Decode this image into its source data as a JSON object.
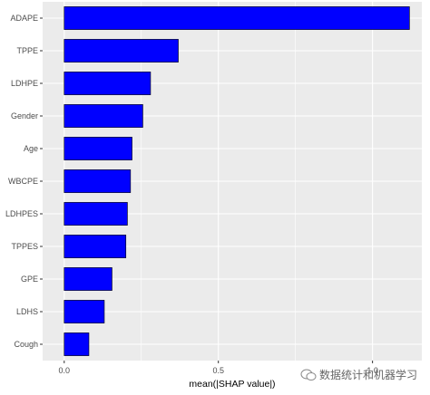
{
  "chart_data": {
    "type": "bar",
    "orientation": "horizontal",
    "categories": [
      "ADAPE",
      "TPPE",
      "LDHPE",
      "Gender",
      "Age",
      "WBCPE",
      "LDHPES",
      "TPPES",
      "GPE",
      "LDHS",
      "Cough"
    ],
    "values": [
      1.12,
      0.37,
      0.28,
      0.255,
      0.22,
      0.215,
      0.205,
      0.2,
      0.155,
      0.13,
      0.08
    ],
    "xlabel": "mean(|SHAP value|)",
    "ylabel": "",
    "xlim": [
      -0.07,
      1.16
    ],
    "xticks": [
      0.0,
      0.5,
      1.0
    ],
    "xtick_labels": [
      "0.0",
      "0.5",
      "1.0"
    ],
    "grid": true,
    "bar_color": "#0000ff",
    "bar_outline": "#000000",
    "panel_background": "#ebebeb",
    "grid_color": "#ffffff"
  },
  "watermark": {
    "text": "数据统计和机器学习",
    "icon": "wechat-icon"
  }
}
